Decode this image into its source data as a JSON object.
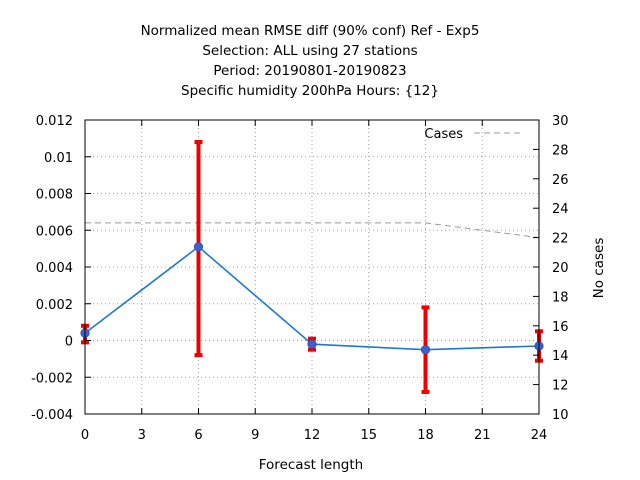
{
  "chart_data": {
    "type": "line",
    "title_lines": [
      "Normalized mean RMSE diff (90% conf) Ref - Exp5",
      "Selection: ALL using    27 stations",
      "Period: 20190801-20190823",
      "Specific humidity 200hPa   Hours: {12}"
    ],
    "xlabel": "Forecast length",
    "ylabel": "",
    "y2label": "No cases",
    "xlim": [
      0,
      24
    ],
    "ylim": [
      -0.004,
      0.012
    ],
    "y2lim": [
      10,
      30
    ],
    "xticks": [
      "0",
      "3",
      "6",
      "9",
      "12",
      "15",
      "18",
      "21",
      "24"
    ],
    "yticks": [
      "-0.004",
      "-0.002",
      "0",
      "0.002",
      "0.004",
      "0.006",
      "0.008",
      "0.01",
      "0.012"
    ],
    "y2ticks": [
      "10",
      "12",
      "14",
      "16",
      "18",
      "20",
      "22",
      "24",
      "26",
      "28",
      "30"
    ],
    "grid": true,
    "legend_position": "top-right",
    "colors": {
      "series": "#1e78d2",
      "marker": "#4060c8",
      "errorbar": "#ee0000",
      "cases": "#999999"
    },
    "series": [
      {
        "x": [
          0,
          6,
          12,
          18,
          24
        ],
        "y": [
          0.0004,
          0.0051,
          -0.0002,
          -0.0005,
          -0.0003
        ],
        "err_low": [
          -0.0001,
          -0.0008,
          -0.0005,
          -0.0028,
          -0.0011
        ],
        "err_high": [
          0.0008,
          0.0108,
          0.0001,
          0.0018,
          0.0005
        ]
      },
      {
        "name": "Cases",
        "x": [
          0,
          6,
          12,
          18,
          24
        ],
        "y": [
          23,
          23,
          23,
          23,
          22
        ]
      }
    ]
  }
}
